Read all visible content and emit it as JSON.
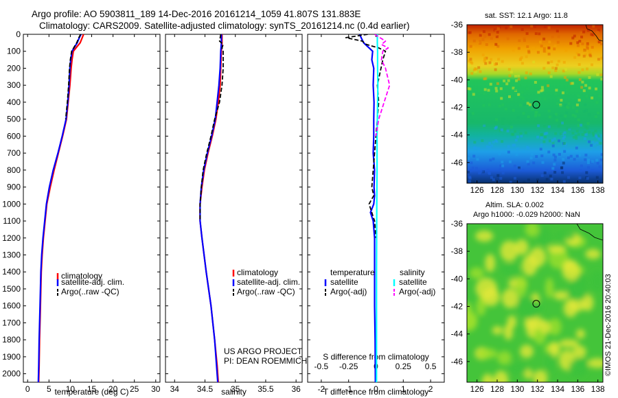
{
  "header": {
    "line1": "Argo profile: AO 5903811_189 14-Dec-2016 20161214_1059 41.807S 131.883E",
    "line2": "Climatology: CARS2009. Satellite-adjusted climatology: synTS_20161214.nc (0.4d earlier)"
  },
  "chart_data": [
    {
      "type": "line",
      "panel": "temperature",
      "xlabel": "temperature (deg C)",
      "xlim": [
        -1,
        31
      ],
      "x_ticks": [
        "0",
        "5",
        "10",
        "15",
        "20",
        "25",
        "30"
      ],
      "ylim": [
        0,
        2050
      ],
      "y_ticks": [
        "0",
        "100",
        "200",
        "300",
        "400",
        "500",
        "600",
        "700",
        "800",
        "900",
        "1000",
        "1100",
        "1200",
        "1300",
        "1400",
        "1500",
        "1600",
        "1700",
        "1800",
        "1900",
        "2000"
      ],
      "y_reversed": true,
      "series": [
        {
          "name": "climatology",
          "color": "#ff0000",
          "style": "solid",
          "x": [
            13.1,
            12.8,
            12.3,
            11.5,
            10.7,
            10.4,
            10.2,
            9.9,
            9.5,
            9.1,
            8.2,
            7.2,
            6.2,
            5.3,
            4.5,
            4.1,
            3.7,
            3.4,
            3.2,
            3.0,
            2.8,
            2.7,
            2.6
          ],
          "y": [
            0,
            20,
            50,
            75,
            100,
            150,
            200,
            300,
            400,
            500,
            600,
            700,
            800,
            900,
            1000,
            1100,
            1200,
            1300,
            1400,
            1600,
            1800,
            1950,
            2050
          ]
        },
        {
          "name": "satellite-adj. clim.",
          "color": "#0000ff",
          "style": "solid",
          "x": [
            12.5,
            12.1,
            11.6,
            11.0,
            10.4,
            10.1,
            9.9,
            9.7,
            9.4,
            9.0,
            8.1,
            7.1,
            6.0,
            5.1,
            4.4,
            4.0,
            3.6,
            3.3,
            3.1,
            2.9,
            2.7,
            2.6,
            2.5
          ],
          "y": [
            0,
            20,
            50,
            75,
            100,
            150,
            200,
            300,
            400,
            500,
            600,
            700,
            800,
            900,
            1000,
            1100,
            1200,
            1300,
            1400,
            1600,
            1800,
            1950,
            2050
          ]
        },
        {
          "name": "Argo(..raw -QC)",
          "color": "#000000",
          "style": "dashed",
          "x": [
            12.4,
            12.0,
            11.5,
            10.9,
            10.3,
            10.0,
            9.8,
            9.6,
            9.3,
            8.9
          ],
          "y": [
            0,
            20,
            50,
            75,
            100,
            150,
            200,
            300,
            400,
            500
          ]
        }
      ],
      "legend": [
        "climatology",
        "satellite-adj. clim.",
        "Argo(..raw -QC)"
      ]
    },
    {
      "type": "line",
      "panel": "salinity",
      "xlabel": "salinity",
      "xlim": [
        33.85,
        36.1
      ],
      "x_ticks": [
        "34",
        "34.5",
        "35",
        "35.5",
        "36"
      ],
      "ylim": [
        0,
        2050
      ],
      "y_reversed": true,
      "series": [
        {
          "name": "climatology",
          "color": "#ff0000",
          "style": "solid",
          "x": [
            34.78,
            34.78,
            34.77,
            34.76,
            34.75,
            34.72,
            34.68,
            34.62,
            34.55,
            34.49,
            34.45,
            34.42,
            34.42,
            34.45,
            34.52,
            34.6,
            34.66,
            34.7,
            34.72
          ],
          "y": [
            0,
            50,
            100,
            200,
            300,
            400,
            500,
            600,
            700,
            800,
            900,
            1000,
            1100,
            1200,
            1400,
            1600,
            1800,
            1950,
            2050
          ]
        },
        {
          "name": "satellite-adj. clim.",
          "color": "#0000ff",
          "style": "solid",
          "x": [
            34.77,
            34.77,
            34.76,
            34.75,
            34.73,
            34.7,
            34.67,
            34.61,
            34.54,
            34.48,
            34.44,
            34.42,
            34.42,
            34.45,
            34.52,
            34.6,
            34.66,
            34.69,
            34.71
          ],
          "y": [
            0,
            50,
            100,
            200,
            300,
            400,
            500,
            600,
            700,
            800,
            900,
            1000,
            1100,
            1200,
            1400,
            1600,
            1800,
            1950,
            2050
          ]
        },
        {
          "name": "Argo(..raw -QC)",
          "color": "#000000",
          "style": "dashed",
          "x": [
            34.76,
            34.74,
            34.8,
            34.78,
            34.8,
            34.8,
            34.78,
            34.74,
            34.7,
            34.66,
            34.6,
            34.53,
            34.47,
            34.44,
            34.42,
            34.42
          ],
          "y": [
            0,
            40,
            60,
            80,
            100,
            200,
            300,
            400,
            450,
            500,
            600,
            700,
            800,
            900,
            1000,
            1100
          ]
        }
      ],
      "legend": [
        "climatology",
        "satellite-adj. clim.",
        "Argo(..raw -QC)"
      ]
    },
    {
      "type": "line",
      "panel": "difference",
      "xlabel": "T difference from climatology",
      "xlabel_top": "S difference from climatology",
      "xlim": [
        -2.5,
        2.5
      ],
      "x_ticks": [
        "-2",
        "-1",
        "0",
        "1",
        "2"
      ],
      "x_ticks_top": [
        "-0.5",
        "-0.25",
        "0",
        "0.25",
        "0.5"
      ],
      "ylim": [
        0,
        2050
      ],
      "y_reversed": true,
      "series": [
        {
          "name": "temperature satellite",
          "color": "#0000ff",
          "style": "solid",
          "x": [
            -0.6,
            -0.45,
            -0.25,
            -0.12,
            -0.15,
            -0.08,
            -0.1,
            -0.07,
            -0.08,
            -0.08,
            -0.1,
            -0.05,
            -0.07,
            -0.05,
            -0.08,
            -0.2,
            -0.1,
            -0.05,
            -0.05,
            -0.03,
            -0.02
          ],
          "y": [
            0,
            50,
            80,
            100,
            150,
            200,
            300,
            400,
            500,
            600,
            700,
            800,
            900,
            950,
            1000,
            1050,
            1100,
            1200,
            1600,
            1800,
            2050
          ]
        },
        {
          "name": "temperature Argo(-adj)",
          "color": "#000000",
          "style": "dashed",
          "x": [
            -0.3,
            -1.1,
            -0.5,
            -0.35,
            0.1,
            0.35,
            0.25,
            0.05,
            0.1,
            0.05,
            0.0,
            -0.1,
            -0.15,
            -0.08,
            -0.25,
            -0.15,
            -0.05,
            0.0
          ],
          "y": [
            0,
            20,
            40,
            60,
            80,
            100,
            150,
            300,
            400,
            500,
            600,
            800,
            900,
            950,
            1000,
            1050,
            1100,
            1200
          ]
        },
        {
          "name": "salinity satellite",
          "color": "#00ffff",
          "style": "solid",
          "x": [
            0.05,
            0.05,
            0.06,
            0.06,
            0.07,
            0.06,
            0.05,
            0.04,
            0.04,
            0.03,
            0.02,
            0.02,
            0.02
          ],
          "y": [
            0,
            50,
            100,
            200,
            300,
            400,
            500,
            600,
            800,
            1000,
            1400,
            1800,
            2050
          ]
        },
        {
          "name": "salinity Argo(-adj)",
          "color": "#ff00ff",
          "style": "dashed",
          "x": [
            -0.05,
            0.35,
            0.2,
            0.45,
            0.25,
            0.2,
            0.35,
            0.5,
            0.3,
            0.2,
            0.1,
            0.05,
            0.0
          ],
          "y": [
            0,
            40,
            60,
            80,
            100,
            150,
            200,
            300,
            400,
            450,
            500,
            550,
            600
          ]
        }
      ],
      "legend_groups": [
        {
          "title": "temperature",
          "items": [
            "satellite",
            "Argo(-adj)"
          ]
        },
        {
          "title": "salinity",
          "items": [
            "satellite",
            "Argo(-adj)"
          ]
        }
      ]
    },
    {
      "type": "heatmap",
      "panel": "sst-map",
      "title": "sat. SST: 12.1  Argo: 11.8",
      "xlim": [
        125,
        138.5
      ],
      "ylim": [
        -47.5,
        -36
      ],
      "x_ticks": [
        "126",
        "128",
        "130",
        "132",
        "134",
        "136",
        "138"
      ],
      "y_ticks": [
        "-36",
        "-38",
        "-40",
        "-42",
        "-44",
        "-46"
      ],
      "colors": [
        "#08306b",
        "#1c5bd8",
        "#1e9fe8",
        "#18b86a",
        "#22c55a",
        "#d8e020",
        "#f0a000",
        "#e06800",
        "#c02000"
      ],
      "marker": {
        "lon": 131.883,
        "lat": -41.807
      }
    },
    {
      "type": "heatmap",
      "panel": "sla-map",
      "title_line1": "Altim. SLA: 0.002",
      "title_line2": "Argo h1000: -0.029 h2000: NaN",
      "xlim": [
        125,
        138.5
      ],
      "ylim": [
        -47.5,
        -36
      ],
      "x_ticks": [
        "126",
        "128",
        "130",
        "132",
        "134",
        "136",
        "138"
      ],
      "y_ticks": [
        "-36",
        "-38",
        "-40",
        "-42",
        "-44",
        "-46"
      ],
      "colors": [
        "#3cc23c",
        "#9ee02a",
        "#e4e838"
      ],
      "marker": {
        "lon": 131.883,
        "lat": -41.807
      }
    }
  ],
  "annotations": {
    "project_line1": "US ARGO PROJECT",
    "project_line2": "PI: DEAN ROEMMICH",
    "credit": "©IMOS 21-Dec-2016 20:40:03"
  }
}
